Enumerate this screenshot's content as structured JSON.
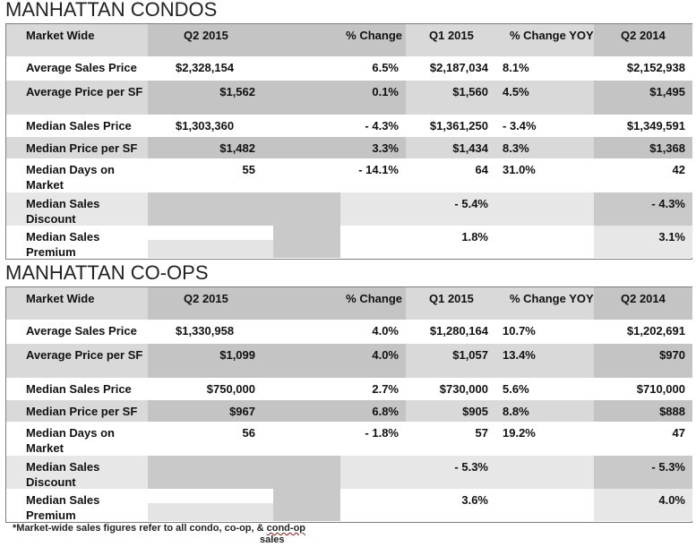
{
  "condos": {
    "title": "MANHATTAN CONDOS",
    "headers": [
      "Market Wide",
      "Q2 2015",
      "% Change",
      "Q1 2015",
      "% Change YOY",
      "Q2 2014"
    ],
    "rows": [
      [
        "Average Sales Price",
        "$2,328,154",
        "6.5%",
        "$2,187,034",
        "8.1%",
        "$2,152,938"
      ],
      [
        "Average Price per SF",
        "$1,562",
        "0.1%",
        "$1,560",
        "4.5%",
        "$1,495"
      ],
      [
        "Median Sales Price",
        "$1,303,360",
        "- 4.3%",
        "$1,361,250",
        "- 3.4%",
        "$1,349,591"
      ],
      [
        "Median Price per SF",
        "$1,482",
        "3.3%",
        "$1,434",
        "8.3%",
        "$1,368"
      ],
      [
        "Median Days on Market",
        "55",
        "- 14.1%",
        "64",
        "31.0%",
        "42"
      ],
      [
        "Median Sales Discount",
        "",
        "",
        "- 5.4%",
        "",
        "- 4.3%"
      ],
      [
        "Median Sales Premium",
        "",
        "",
        "1.8%",
        "",
        "3.1%"
      ]
    ]
  },
  "coops": {
    "title": "MANHATTAN CO-OPS",
    "headers": [
      "Market Wide",
      "Q2 2015",
      "% Change",
      "Q1 2015",
      "% Change YOY",
      "Q2 2014"
    ],
    "rows": [
      [
        "Average Sales Price",
        "$1,330,958",
        "4.0%",
        "$1,280,164",
        "10.7%",
        "$1,202,691"
      ],
      [
        "Average Price per SF",
        "$1,099",
        "4.0%",
        "$1,057",
        "13.4%",
        "$970"
      ],
      [
        "Median Sales Price",
        "$750,000",
        "2.7%",
        "$730,000",
        "5.6%",
        "$710,000"
      ],
      [
        "Median Price per SF",
        "$967",
        "6.8%",
        "$905",
        "8.8%",
        "$888"
      ],
      [
        "Median Days on Market",
        "56",
        "- 1.8%",
        "57",
        "19.2%",
        "47"
      ],
      [
        "Median Sales Discount",
        "",
        "",
        "- 5.3%",
        "",
        "- 5.3%"
      ],
      [
        "Median Sales Premium",
        "",
        "",
        "3.6%",
        "",
        "4.0%"
      ]
    ]
  },
  "footnote": {
    "before": "*Market-wide sales figures refer to all condo, co-op, & ",
    "underlined": "cond-op",
    "after": " sales"
  }
}
